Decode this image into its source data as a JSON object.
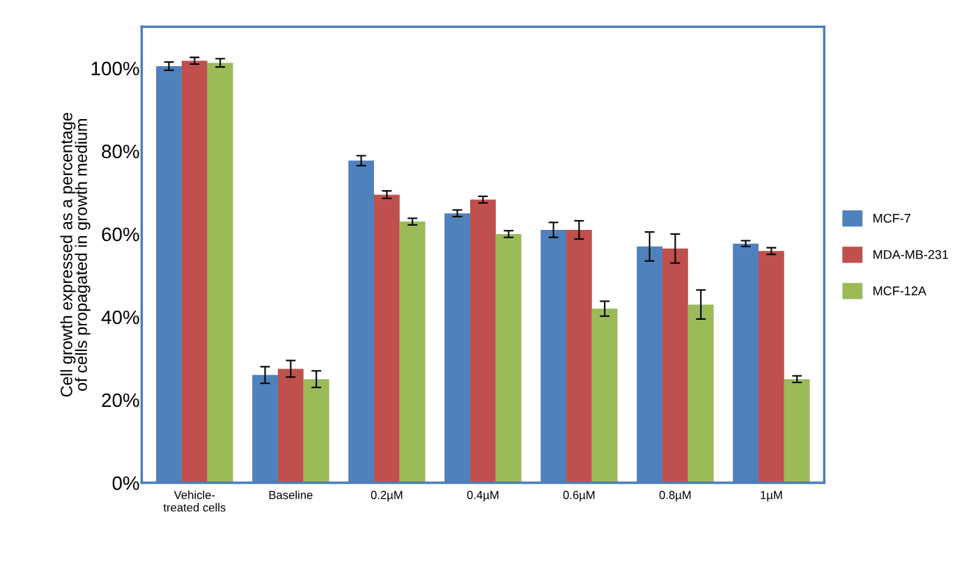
{
  "chart_data": {
    "type": "bar",
    "ylabel": "Cell growth expressed as a percentage\nof cells propagated in growth medium",
    "categories": [
      "Vehicle-\ntreated cells",
      "Baseline",
      "0.2µM",
      "0.4µM",
      "0.6µM",
      "0.8µM",
      "1µM"
    ],
    "series": [
      {
        "name": "MCF-7",
        "color": "#4f81bd",
        "values": [
          100.5,
          26,
          77.7,
          65,
          61,
          57,
          57.7
        ],
        "errors": [
          1,
          2,
          1.2,
          0.8,
          1.8,
          3.5,
          0.7
        ]
      },
      {
        "name": "MDA-MB-231",
        "color": "#c0504d",
        "values": [
          101.8,
          27.5,
          69.5,
          68.3,
          61,
          56.5,
          55.9
        ],
        "errors": [
          0.8,
          2,
          0.9,
          0.8,
          2.2,
          3.5,
          0.8
        ]
      },
      {
        "name": "MCF-12A",
        "color": "#9bbb59",
        "values": [
          101.3,
          25,
          63,
          60,
          42,
          43,
          25
        ],
        "errors": [
          1,
          2,
          0.8,
          0.8,
          1.8,
          3.5,
          0.8
        ]
      }
    ],
    "ylim": [
      0,
      110
    ],
    "yticks": [
      {
        "value": 0,
        "label": "0%"
      },
      {
        "value": 20,
        "label": "20%"
      },
      {
        "value": 40,
        "label": "40%"
      },
      {
        "value": 60,
        "label": "60%"
      },
      {
        "value": 80,
        "label": "80%"
      },
      {
        "value": 100,
        "label": "100%"
      }
    ],
    "grid": false,
    "legend": "right"
  }
}
